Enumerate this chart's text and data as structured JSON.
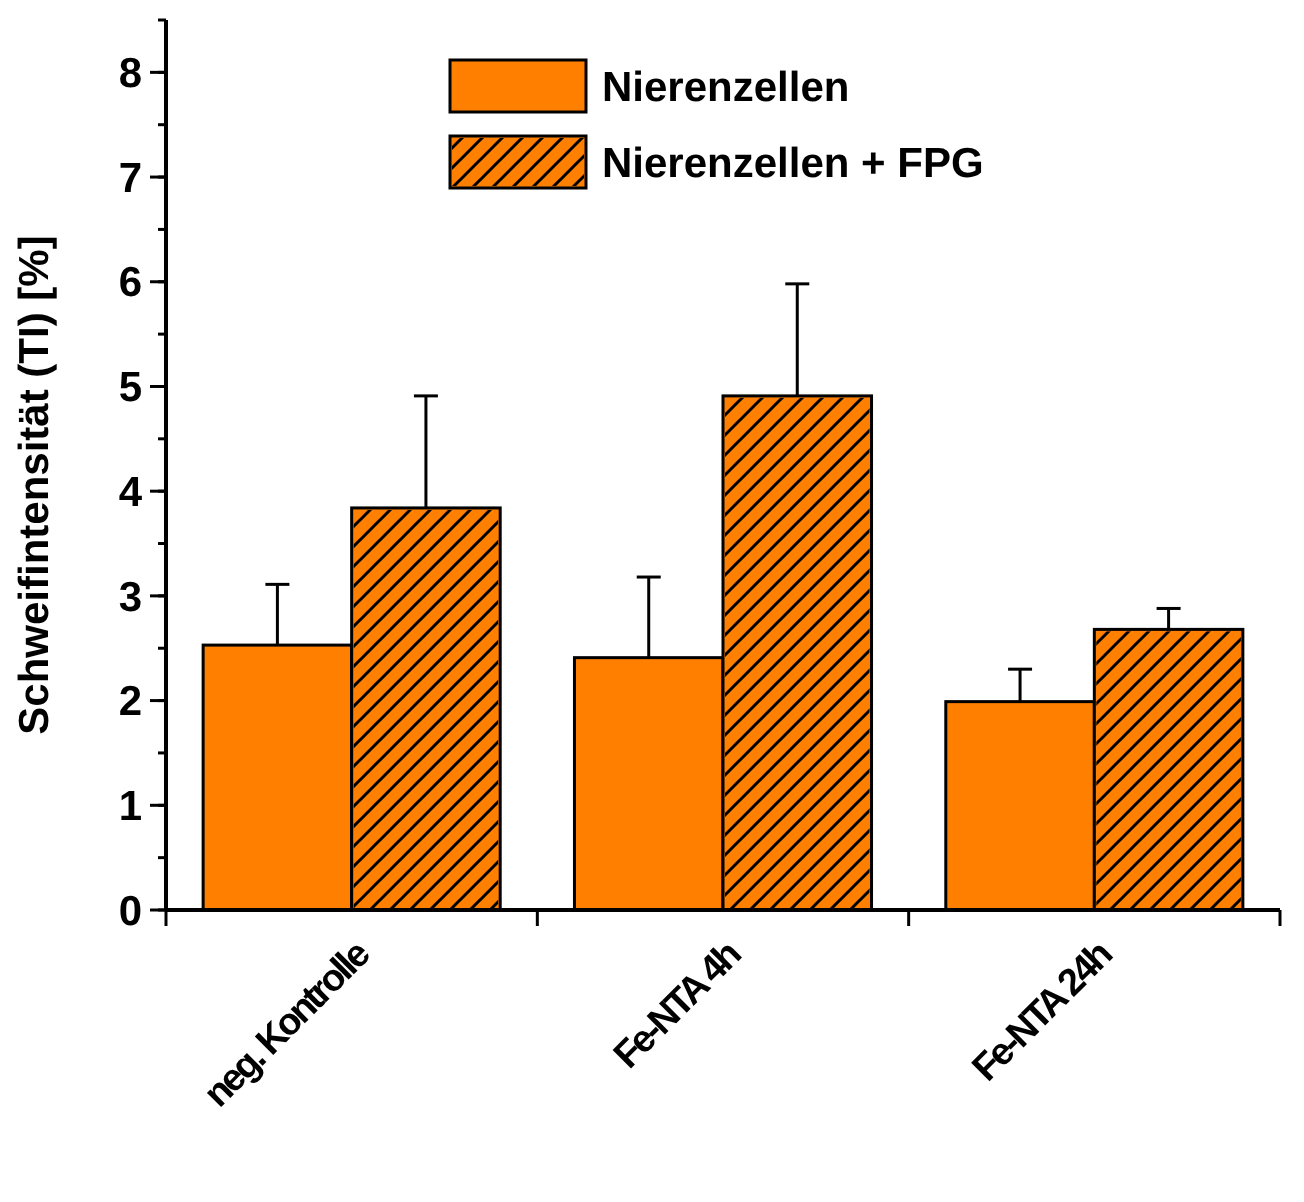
{
  "chart_data": {
    "type": "bar",
    "ylabel": "Schweifintensität (TI) [%]",
    "categories": [
      "neg. Kontrolle",
      "Fe-NTA 4h",
      "Fe-NTA 24h"
    ],
    "series": [
      {
        "name": "Nierenzellen",
        "color": "#ff8000",
        "values": [
          2.53,
          2.41,
          1.99
        ],
        "errors": [
          [
            2.53,
            3.11
          ],
          [
            2.41,
            3.18
          ],
          [
            1.99,
            2.3
          ]
        ]
      },
      {
        "name": "Nierenzellen + FPG",
        "color": "#ff8000",
        "values": [
          3.84,
          4.91,
          2.68
        ],
        "errors": [
          [
            3.84,
            4.91
          ],
          [
            4.91,
            5.98
          ],
          [
            2.68,
            2.88
          ]
        ]
      }
    ],
    "ylim": [
      0,
      8.5
    ],
    "yticks": [
      0,
      1,
      2,
      3,
      4,
      5,
      6,
      7,
      8
    ],
    "legend": "top",
    "grid": false
  }
}
